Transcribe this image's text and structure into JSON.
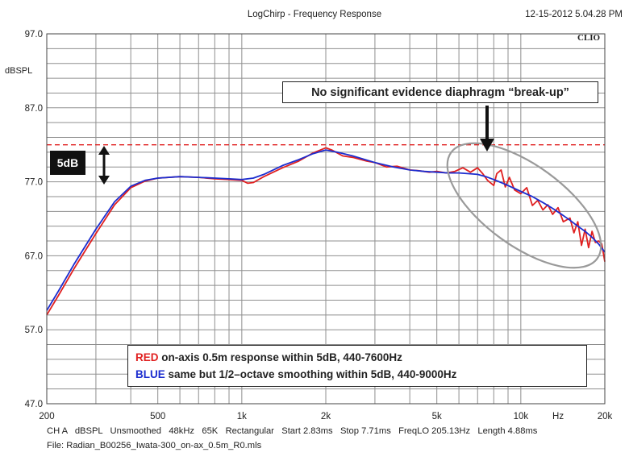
{
  "header": {
    "title": "LogChirp - Frequency Response",
    "timestamp": "12-15-2012 5.04.28 PM",
    "brand": "CLIO"
  },
  "axes": {
    "y_unit_label": "dBSPL",
    "y_ticks": [
      "97.0",
      "87.0",
      "77.0",
      "67.0",
      "57.0",
      "47.0"
    ],
    "x_ticks": [
      "200",
      "500",
      "1k",
      "2k",
      "5k",
      "10k",
      "Hz",
      "20k"
    ]
  },
  "footer": {
    "info_line": "CH A   dBSPL   Unsmoothed   48kHz   65K   Rectangular   Start 2.83ms   Stop 7.71ms   FreqLO 205.13Hz   Length 4.88ms",
    "file_line": "File: Radian_B00256_Iwata-300_on-ax_0.5m_R0.mls"
  },
  "annotations": {
    "callout": "No significant evidence diaphragm “break-up”",
    "five_db": "5dB",
    "legend_red_word": "RED",
    "legend_red_text": " on-axis 0.5m  response within 5dB, 440-7600Hz",
    "legend_blue_word": "BLUE",
    "legend_blue_text": " same but 1/2–octave  smoothing within 5dB, 440-9000Hz"
  },
  "chart_data": {
    "type": "line",
    "title": "LogChirp - Frequency Response",
    "xlabel": "Hz",
    "ylabel": "dBSPL",
    "x_scale": "log",
    "xlim": [
      200,
      20000
    ],
    "ylim": [
      47,
      97
    ],
    "grid": true,
    "reference_line_db": 82,
    "colors": {
      "red": "#e02020",
      "blue": "#1c2dcf",
      "reference": "#e02020",
      "ellipse": "#9a9a9a"
    },
    "series": [
      {
        "name": "RED",
        "color": "#e02020",
        "x": [
          200,
          220,
          250,
          280,
          300,
          350,
          400,
          450,
          500,
          600,
          700,
          800,
          900,
          1000,
          1050,
          1100,
          1200,
          1400,
          1600,
          1800,
          2000,
          2100,
          2300,
          2500,
          2800,
          3000,
          3300,
          3600,
          4000,
          4300,
          4700,
          5000,
          5400,
          5800,
          6200,
          6600,
          7000,
          7300,
          7600,
          8000,
          8200,
          8500,
          8800,
          9100,
          9500,
          10000,
          10500,
          11000,
          11500,
          12000,
          12500,
          13000,
          13600,
          14200,
          15000,
          15500,
          16000,
          16500,
          17000,
          17500,
          18000,
          18500,
          19000,
          19500,
          20000
        ],
        "values": [
          59.0,
          61.6,
          65.2,
          68.2,
          70.0,
          73.9,
          76.2,
          77.1,
          77.5,
          77.7,
          77.6,
          77.4,
          77.3,
          77.2,
          76.8,
          76.9,
          77.7,
          78.9,
          79.8,
          80.9,
          81.6,
          81.3,
          80.5,
          80.3,
          79.8,
          79.6,
          79.0,
          79.1,
          78.6,
          78.5,
          78.3,
          78.4,
          78.2,
          78.4,
          78.9,
          78.3,
          78.9,
          78.1,
          77.2,
          76.5,
          78.1,
          78.6,
          76.3,
          77.6,
          75.9,
          75.4,
          76.2,
          73.8,
          74.5,
          73.2,
          73.9,
          72.6,
          73.5,
          71.6,
          72.1,
          70.1,
          71.6,
          68.4,
          70.6,
          68.1,
          70.3,
          68.8,
          69.0,
          68.6,
          66.2
        ]
      },
      {
        "name": "BLUE",
        "color": "#1c2dcf",
        "x": [
          200,
          220,
          250,
          280,
          300,
          350,
          400,
          450,
          500,
          600,
          700,
          800,
          900,
          1000,
          1100,
          1200,
          1400,
          1600,
          1800,
          2000,
          2200,
          2500,
          3000,
          3500,
          4000,
          4500,
          5000,
          5500,
          6000,
          6500,
          7000,
          7500,
          8000,
          8500,
          9000,
          10000,
          11000,
          12000,
          13000,
          14000,
          15000,
          16000,
          17000,
          18000,
          19000,
          20000
        ],
        "values": [
          59.6,
          62.2,
          65.8,
          68.8,
          70.6,
          74.3,
          76.4,
          77.2,
          77.5,
          77.7,
          77.6,
          77.5,
          77.4,
          77.3,
          77.5,
          78.0,
          79.2,
          80.0,
          80.8,
          81.3,
          81.0,
          80.5,
          79.6,
          79.0,
          78.6,
          78.4,
          78.3,
          78.2,
          78.2,
          78.1,
          78.0,
          77.7,
          77.3,
          76.9,
          76.5,
          75.7,
          75.0,
          74.2,
          73.4,
          72.6,
          71.8,
          71.0,
          70.3,
          69.5,
          68.6,
          67.5
        ]
      }
    ]
  }
}
